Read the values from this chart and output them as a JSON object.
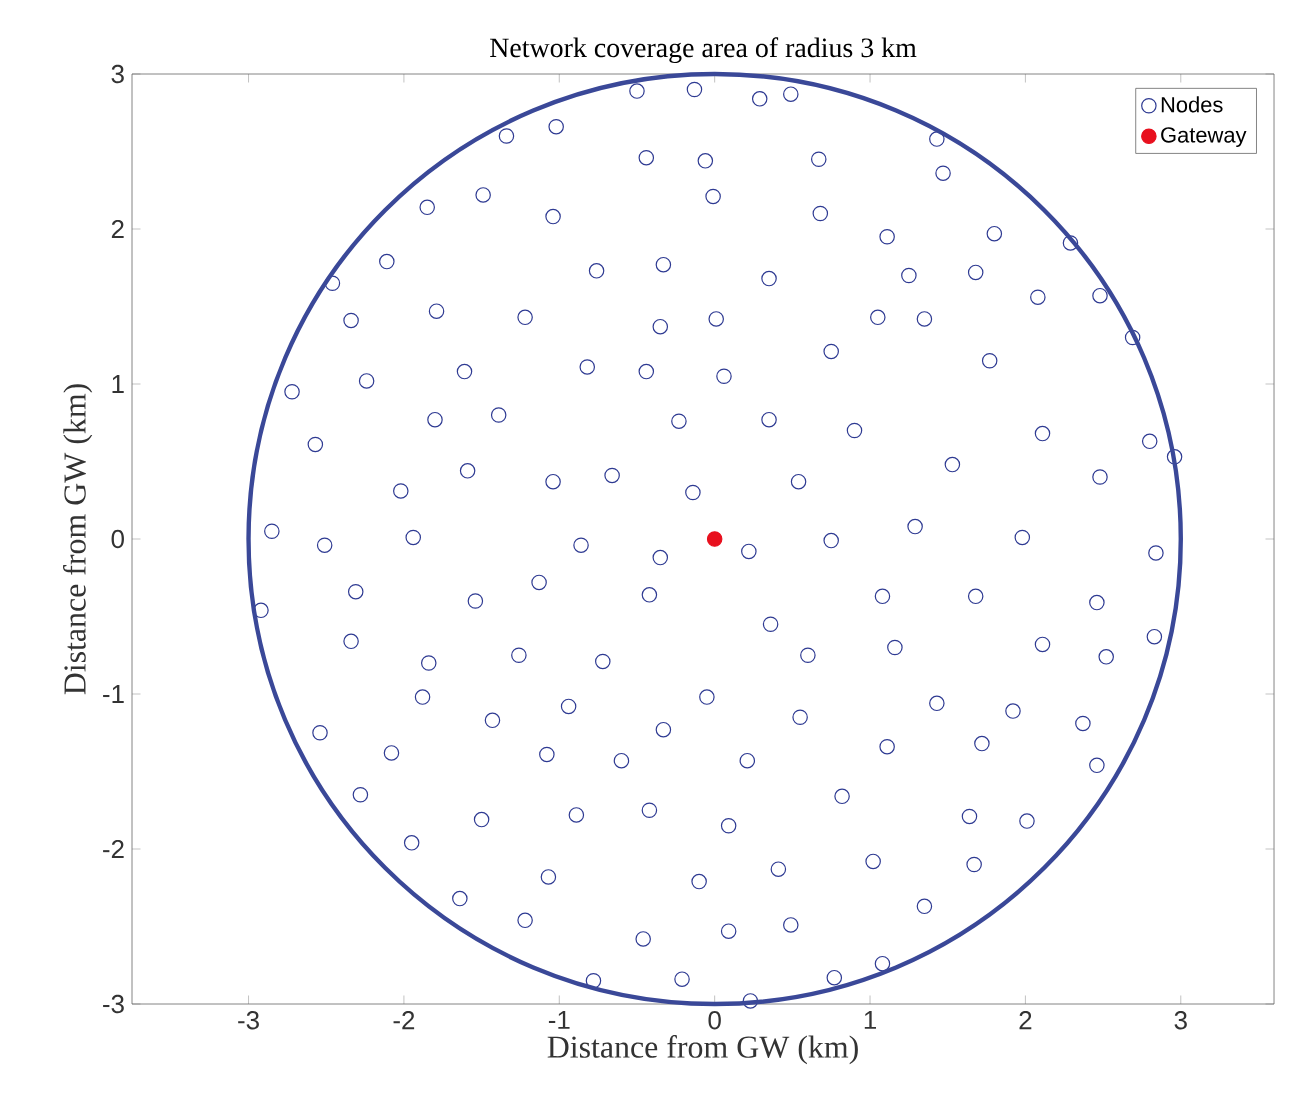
{
  "chart_data": {
    "type": "scatter",
    "title": "Network coverage area of radius 3 km",
    "xlabel": "Distance from GW (km)",
    "ylabel": "Distance from GW (km)",
    "xlim": [
      -3.75,
      3.6
    ],
    "ylim": [
      -3,
      3
    ],
    "xticks": [
      -3,
      -2,
      -1,
      0,
      1,
      2,
      3
    ],
    "yticks": [
      -3,
      -2,
      -1,
      0,
      1,
      2,
      3
    ],
    "grid": false,
    "legend": "top right",
    "marker": "circle",
    "series": [
      {
        "name": "Nodes",
        "color": "#2e3a92",
        "x": [
          -0.5,
          -0.13,
          0.29,
          0.49,
          -1.34,
          -1.02,
          -0.44,
          -0.06,
          0.67,
          1.43,
          1.47,
          -1.85,
          -1.49,
          -1.04,
          -0.01,
          0.68,
          1.11,
          1.8,
          2.29,
          -2.46,
          -2.11,
          -1.79,
          -0.76,
          -0.33,
          0.35,
          1.25,
          1.68,
          2.08,
          2.48,
          -2.34,
          -1.22,
          0.01,
          1.05,
          1.35,
          -2.72,
          -2.24,
          -1.61,
          -0.82,
          -0.44,
          0.06,
          0.75,
          1.77,
          2.69,
          -2.57,
          -1.8,
          -1.39,
          -0.23,
          0.35,
          0.9,
          2.11,
          2.8,
          -2.02,
          -1.59,
          -1.04,
          -0.66,
          -0.14,
          0.54,
          1.53,
          2.48,
          2.96,
          -2.85,
          -2.51,
          -1.94,
          -0.86,
          -0.35,
          0.22,
          0.75,
          1.29,
          1.98,
          2.84,
          -2.92,
          -2.31,
          -1.54,
          -1.13,
          -0.42,
          0.36,
          1.08,
          1.68,
          2.46,
          2.83,
          -2.34,
          -1.84,
          -1.26,
          -0.72,
          -0.05,
          0.6,
          1.16,
          2.11,
          2.52,
          -2.54,
          -1.88,
          -1.43,
          -0.94,
          -0.33,
          0.55,
          1.43,
          1.92,
          2.37,
          -2.08,
          -1.08,
          -0.6,
          0.21,
          1.11,
          1.72,
          2.46,
          -2.28,
          -1.5,
          -0.89,
          -0.42,
          0.09,
          0.82,
          1.64,
          2.01,
          -1.95,
          -1.07,
          -0.1,
          0.41,
          1.02,
          1.67,
          -1.64,
          -1.22,
          -0.46,
          0.09,
          0.49,
          1.35,
          -0.78,
          -0.21,
          0.23,
          0.77,
          1.08,
          -0.35
        ],
        "values": [
          2.89,
          2.9,
          2.84,
          2.87,
          2.6,
          2.66,
          2.46,
          2.44,
          2.45,
          2.58,
          2.36,
          2.14,
          2.22,
          2.08,
          2.21,
          2.1,
          1.95,
          1.97,
          1.91,
          1.65,
          1.79,
          1.47,
          1.73,
          1.77,
          1.68,
          1.7,
          1.72,
          1.56,
          1.57,
          1.41,
          1.43,
          1.42,
          1.43,
          1.42,
          0.95,
          1.02,
          1.08,
          1.11,
          1.08,
          1.05,
          1.21,
          1.15,
          1.3,
          0.61,
          0.77,
          0.8,
          0.76,
          0.77,
          0.7,
          0.68,
          0.63,
          0.31,
          0.44,
          0.37,
          0.41,
          0.3,
          0.37,
          0.48,
          0.4,
          0.53,
          0.05,
          -0.04,
          0.01,
          -0.04,
          -0.12,
          -0.08,
          -0.01,
          0.08,
          0.01,
          -0.09,
          -0.46,
          -0.34,
          -0.4,
          -0.28,
          -0.36,
          -0.55,
          -0.37,
          -0.37,
          -0.41,
          -0.63,
          -0.66,
          -0.8,
          -0.75,
          -0.79,
          -1.02,
          -0.75,
          -0.7,
          -0.68,
          -0.76,
          -1.25,
          -1.02,
          -1.17,
          -1.08,
          -1.23,
          -1.15,
          -1.06,
          -1.11,
          -1.19,
          -1.38,
          -1.39,
          -1.43,
          -1.43,
          -1.34,
          -1.32,
          -1.46,
          -1.65,
          -1.81,
          -1.78,
          -1.75,
          -1.85,
          -1.66,
          -1.79,
          -1.82,
          -1.96,
          -2.18,
          -2.21,
          -2.13,
          -2.08,
          -2.1,
          -2.32,
          -2.46,
          -2.58,
          -2.53,
          -2.49,
          -2.37,
          -2.85,
          -2.84,
          -2.98,
          -2.83,
          -2.74,
          1.37
        ]
      },
      {
        "name": "Gateway",
        "color": "#e8101e",
        "x": [
          0
        ],
        "values": [
          0
        ]
      }
    ]
  }
}
